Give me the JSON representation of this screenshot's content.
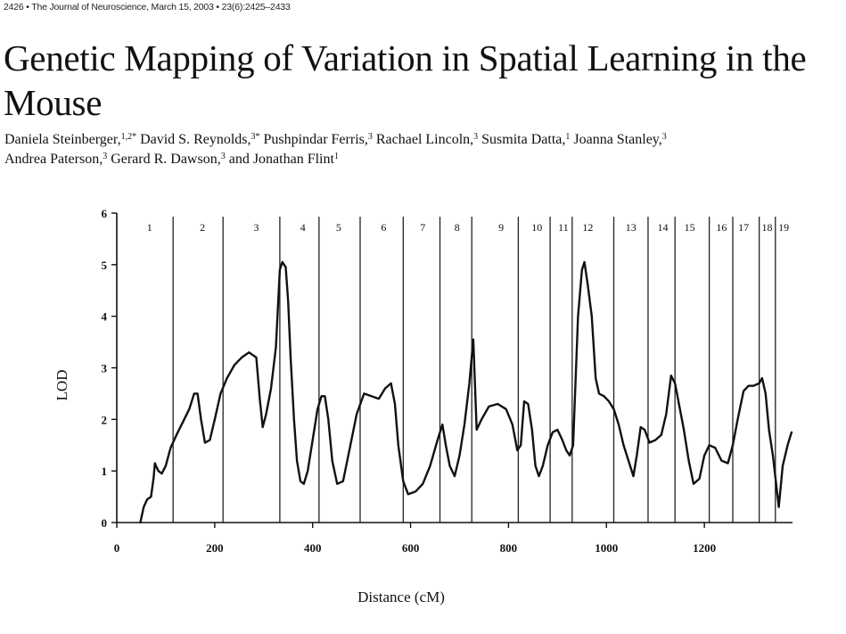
{
  "header": {
    "running_head": "2426 • The Journal of Neuroscience, March 15, 2003 • 23(6):2425–2433"
  },
  "article": {
    "title": "Genetic Mapping of Variation in Spatial Learning in the Mouse",
    "authors_line1": [
      {
        "name": "Daniela Steinberger,",
        "sup": "1,2*"
      },
      {
        "name": " David S. Reynolds,",
        "sup": "3*"
      },
      {
        "name": " Pushpindar Ferris,",
        "sup": "3"
      },
      {
        "name": " Rachael Lincoln,",
        "sup": "3"
      },
      {
        "name": " Susmita Datta,",
        "sup": "1"
      },
      {
        "name": " Joanna Stanley,",
        "sup": "3"
      }
    ],
    "authors_line2": [
      {
        "name": "Andrea Paterson,",
        "sup": "3"
      },
      {
        "name": " Gerard R. Dawson,",
        "sup": "3"
      },
      {
        "name": " and Jonathan Flint",
        "sup": "1"
      }
    ]
  },
  "chart_data": {
    "type": "line",
    "xlabel": "Distance (cM)",
    "ylabel": "LOD",
    "xlim": [
      0,
      1380
    ],
    "ylim": [
      0,
      6
    ],
    "xticks": [
      0,
      200,
      400,
      600,
      800,
      1000,
      1200
    ],
    "yticks": [
      0,
      1,
      2,
      3,
      4,
      5,
      6
    ],
    "chromosome_boundaries": [
      115,
      217,
      333,
      413,
      497,
      585,
      660,
      725,
      820,
      885,
      930,
      1015,
      1085,
      1140,
      1210,
      1258,
      1312,
      1345
    ],
    "chromosomes": [
      {
        "label": "1",
        "center": 67
      },
      {
        "label": "2",
        "center": 175
      },
      {
        "label": "3",
        "center": 285
      },
      {
        "label": "4",
        "center": 380
      },
      {
        "label": "5",
        "center": 453
      },
      {
        "label": "6",
        "center": 545
      },
      {
        "label": "7",
        "center": 625
      },
      {
        "label": "8",
        "center": 695
      },
      {
        "label": "9",
        "center": 785
      },
      {
        "label": "10",
        "center": 858
      },
      {
        "label": "11",
        "center": 912
      },
      {
        "label": "12",
        "center": 962
      },
      {
        "label": "13",
        "center": 1050
      },
      {
        "label": "14",
        "center": 1115
      },
      {
        "label": "15",
        "center": 1170
      },
      {
        "label": "16",
        "center": 1235
      },
      {
        "label": "17",
        "center": 1280
      },
      {
        "label": "18",
        "center": 1328
      },
      {
        "label": "19",
        "center": 1362
      }
    ],
    "series": [
      {
        "x": [
          48,
          55,
          62,
          70,
          75,
          78,
          80,
          85,
          92,
          100,
          110,
          122,
          135,
          148,
          158,
          165,
          172,
          180,
          190,
          200,
          212,
          225,
          240,
          255,
          270,
          285,
          292,
          298,
          305,
          315,
          325,
          333,
          338,
          345,
          350,
          355,
          362,
          368,
          375,
          382,
          390,
          400,
          410,
          418,
          425,
          432,
          440,
          450,
          462,
          475,
          490,
          505,
          520,
          535,
          548,
          560,
          568,
          575,
          585,
          595,
          610,
          625,
          640,
          655,
          665,
          672,
          680,
          690,
          700,
          710,
          720,
          728,
          735,
          745,
          760,
          778,
          795,
          808,
          818,
          825,
          832,
          840,
          848,
          855,
          862,
          870,
          880,
          890,
          900,
          910,
          918,
          925,
          932,
          942,
          950,
          955,
          962,
          970,
          978,
          985,
          995,
          1005,
          1015,
          1025,
          1035,
          1045,
          1055,
          1062,
          1070,
          1078,
          1088,
          1100,
          1112,
          1122,
          1132,
          1140,
          1148,
          1158,
          1168,
          1178,
          1190,
          1200,
          1210,
          1222,
          1235,
          1248,
          1258,
          1268,
          1280,
          1290,
          1300,
          1312,
          1318,
          1325,
          1332,
          1340,
          1346,
          1352,
          1360,
          1370,
          1378
        ],
        "y": [
          0.0,
          0.3,
          0.45,
          0.5,
          0.85,
          1.15,
          1.1,
          1.0,
          0.95,
          1.1,
          1.45,
          1.7,
          1.95,
          2.2,
          2.5,
          2.5,
          2.0,
          1.55,
          1.6,
          2.0,
          2.5,
          2.8,
          3.05,
          3.2,
          3.3,
          3.2,
          2.4,
          1.85,
          2.1,
          2.6,
          3.4,
          4.9,
          5.05,
          4.95,
          4.3,
          3.2,
          2.0,
          1.2,
          0.8,
          0.75,
          1.0,
          1.6,
          2.2,
          2.45,
          2.45,
          2.0,
          1.2,
          0.75,
          0.8,
          1.4,
          2.1,
          2.5,
          2.45,
          2.4,
          2.6,
          2.7,
          2.3,
          1.5,
          0.8,
          0.55,
          0.6,
          0.75,
          1.1,
          1.6,
          1.9,
          1.5,
          1.1,
          0.9,
          1.3,
          1.9,
          2.7,
          3.55,
          1.8,
          2.0,
          2.25,
          2.3,
          2.2,
          1.9,
          1.4,
          1.5,
          2.35,
          2.3,
          1.8,
          1.1,
          0.9,
          1.1,
          1.5,
          1.75,
          1.8,
          1.6,
          1.4,
          1.3,
          1.5,
          4.0,
          4.9,
          5.05,
          4.6,
          4.0,
          2.8,
          2.5,
          2.45,
          2.35,
          2.2,
          1.9,
          1.5,
          1.2,
          0.9,
          1.3,
          1.85,
          1.8,
          1.55,
          1.6,
          1.7,
          2.1,
          2.85,
          2.7,
          2.3,
          1.8,
          1.2,
          0.75,
          0.85,
          1.3,
          1.5,
          1.45,
          1.2,
          1.15,
          1.5,
          2.0,
          2.55,
          2.65,
          2.65,
          2.7,
          2.8,
          2.5,
          1.8,
          1.3,
          0.8,
          0.3,
          1.1,
          1.5,
          1.75
        ]
      }
    ]
  }
}
